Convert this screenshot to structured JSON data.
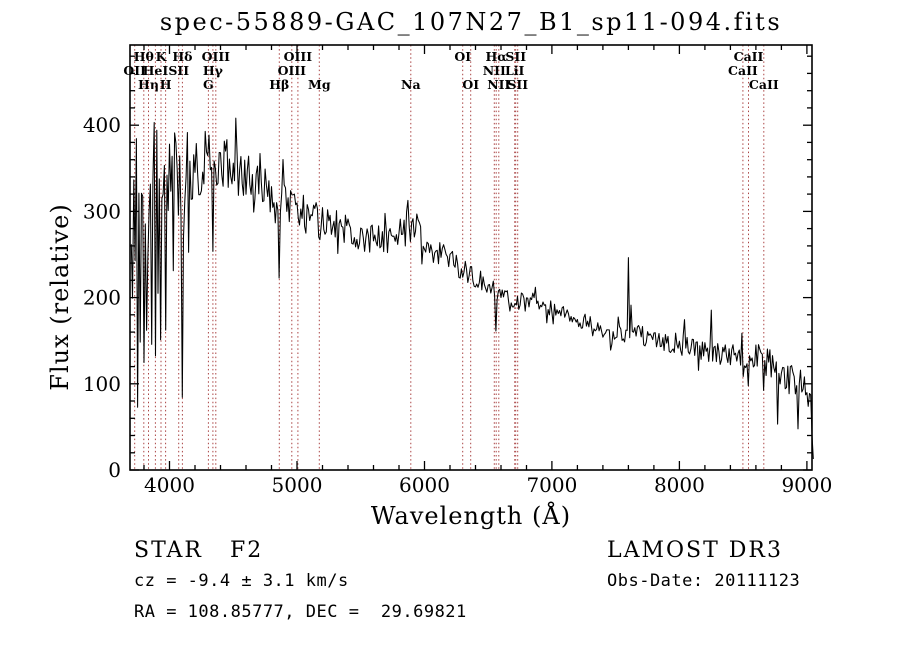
{
  "title": "spec-55889-GAC_107N27_B1_sp11-094.fits",
  "footer": {
    "class_label": "STAR   F2",
    "survey": "LAMOST DR3",
    "cz": "cz = -9.4 ± 3.1 km/s",
    "obs_date": "Obs-Date: 20111123",
    "ra_dec": "RA = 108.85777, DEC =  29.69821"
  },
  "chart_data": {
    "type": "line",
    "title": "spec-55889-GAC_107N27_B1_sp11-094.fits",
    "xlabel": "Wavelength (Å)",
    "ylabel": "Flux (relative)",
    "xlim": [
      3690,
      9040
    ],
    "ylim": [
      0,
      493
    ],
    "x_ticks": [
      4000,
      5000,
      6000,
      7000,
      8000,
      9000
    ],
    "x_minor_step": 200,
    "y_ticks": [
      0,
      100,
      200,
      300,
      400
    ],
    "y_minor_step": 20,
    "grid": false,
    "line_color": "#000000",
    "spectral_line_color": "#aa4444",
    "spectral_line_rows": [
      [
        {
          "label": "Hθ",
          "wavelength": 3798
        },
        {
          "label": "K",
          "wavelength": 3933
        },
        {
          "label": "Hδ",
          "wavelength": 4101
        },
        {
          "label": "OIII",
          "wavelength": 4363
        },
        {
          "label": "OIII",
          "wavelength": 5007
        },
        {
          "label": "OI",
          "wavelength": 6300
        },
        {
          "label": "Hα",
          "wavelength": 6563
        },
        {
          "label": "SII",
          "wavelength": 6716
        },
        {
          "label": "CaII",
          "wavelength": 8542
        }
      ],
      [
        {
          "label": "OII",
          "wavelength": 3727
        },
        {
          "label": "HeI",
          "wavelength": 3889
        },
        {
          "label": "SII",
          "wavelength": 4072
        },
        {
          "label": "Hγ",
          "wavelength": 4340
        },
        {
          "label": "OIII",
          "wavelength": 4959
        },
        {
          "label": "NII",
          "wavelength": 6548
        },
        {
          "label": "LiI",
          "wavelength": 6708
        },
        {
          "label": "CaII",
          "wavelength": 8498
        }
      ],
      [
        {
          "label": "Hη",
          "wavelength": 3835
        },
        {
          "label": "H",
          "wavelength": 3969
        },
        {
          "label": "G",
          "wavelength": 4305
        },
        {
          "label": "Hβ",
          "wavelength": 4861
        },
        {
          "label": "Mg",
          "wavelength": 5175
        },
        {
          "label": "Na",
          "wavelength": 5893
        },
        {
          "label": "OI",
          "wavelength": 6363
        },
        {
          "label": "NII",
          "wavelength": 6583
        },
        {
          "label": "SII",
          "wavelength": 6731
        },
        {
          "label": "CaII",
          "wavelength": 8662
        }
      ]
    ],
    "noise_seed": 20111123,
    "sample_step": 10,
    "continuum_anchors": [
      [
        3700,
        310
      ],
      [
        3760,
        332
      ],
      [
        3820,
        342
      ],
      [
        3900,
        348
      ],
      [
        4000,
        350
      ],
      [
        4150,
        350
      ],
      [
        4300,
        358
      ],
      [
        4400,
        357
      ],
      [
        4500,
        352
      ],
      [
        4650,
        337
      ],
      [
        4800,
        320
      ],
      [
        4950,
        308
      ],
      [
        5100,
        298
      ],
      [
        5250,
        288
      ],
      [
        5400,
        277
      ],
      [
        5550,
        269
      ],
      [
        5700,
        267
      ],
      [
        5800,
        276
      ],
      [
        5880,
        290
      ],
      [
        5950,
        280
      ],
      [
        6050,
        258
      ],
      [
        6150,
        248
      ],
      [
        6300,
        232
      ],
      [
        6450,
        220
      ],
      [
        6600,
        203
      ],
      [
        6750,
        196
      ],
      [
        6900,
        190
      ],
      [
        7000,
        188
      ],
      [
        7150,
        177
      ],
      [
        7300,
        166
      ],
      [
        7450,
        159
      ],
      [
        7550,
        156
      ],
      [
        7650,
        160
      ],
      [
        7750,
        153
      ],
      [
        7900,
        149
      ],
      [
        8050,
        145
      ],
      [
        8200,
        140
      ],
      [
        8350,
        135
      ],
      [
        8500,
        129
      ],
      [
        8650,
        129
      ],
      [
        8750,
        126
      ],
      [
        8850,
        108
      ],
      [
        8950,
        97
      ],
      [
        9010,
        90
      ],
      [
        9035,
        60
      ],
      [
        9052,
        10
      ]
    ],
    "noise_amplitude_anchors": [
      [
        3700,
        65
      ],
      [
        3850,
        60
      ],
      [
        3950,
        52
      ],
      [
        4050,
        45
      ],
      [
        4200,
        38
      ],
      [
        4400,
        33
      ],
      [
        4600,
        28
      ],
      [
        4800,
        24
      ],
      [
        5000,
        20
      ],
      [
        5300,
        18
      ],
      [
        5600,
        16
      ],
      [
        5900,
        17
      ],
      [
        6100,
        15
      ],
      [
        6400,
        12
      ],
      [
        6700,
        11
      ],
      [
        7000,
        9
      ],
      [
        7300,
        9
      ],
      [
        7600,
        11
      ],
      [
        7900,
        12
      ],
      [
        8200,
        13
      ],
      [
        8500,
        15
      ],
      [
        8700,
        18
      ],
      [
        8900,
        22
      ],
      [
        9050,
        18
      ]
    ],
    "absorption_features": [
      {
        "wavelength": 3712,
        "depth": 170,
        "width": 4
      },
      {
        "wavelength": 3727,
        "depth": 190,
        "width": 4
      },
      {
        "wavelength": 3750,
        "depth": 210,
        "width": 5
      },
      {
        "wavelength": 3771,
        "depth": 200,
        "width": 5
      },
      {
        "wavelength": 3798,
        "depth": 210,
        "width": 5
      },
      {
        "wavelength": 3820,
        "depth": 160,
        "width": 4
      },
      {
        "wavelength": 3835,
        "depth": 230,
        "width": 5
      },
      {
        "wavelength": 3860,
        "depth": 170,
        "width": 4
      },
      {
        "wavelength": 3889,
        "depth": 220,
        "width": 5
      },
      {
        "wavelength": 3910,
        "depth": 160,
        "width": 4
      },
      {
        "wavelength": 3933,
        "depth": 240,
        "width": 6
      },
      {
        "wavelength": 3969,
        "depth": 220,
        "width": 6
      },
      {
        "wavelength": 4026,
        "depth": 120,
        "width": 5
      },
      {
        "wavelength": 4072,
        "depth": 110,
        "width": 5
      },
      {
        "wavelength": 4101,
        "depth": 230,
        "width": 7
      },
      {
        "wavelength": 4150,
        "depth": 80,
        "width": 5
      },
      {
        "wavelength": 4226,
        "depth": 90,
        "width": 5
      },
      {
        "wavelength": 4340,
        "depth": 130,
        "width": 7
      },
      {
        "wavelength": 4383,
        "depth": 70,
        "width": 5
      },
      {
        "wavelength": 4861,
        "depth": 95,
        "width": 7
      },
      {
        "wavelength": 5175,
        "depth": 28,
        "width": 9
      },
      {
        "wavelength": 5893,
        "depth": 32,
        "width": 7
      },
      {
        "wavelength": 6563,
        "depth": 62,
        "width": 6
      },
      {
        "wavelength": 8498,
        "depth": 25,
        "width": 5
      },
      {
        "wavelength": 8542,
        "depth": 30,
        "width": 5
      },
      {
        "wavelength": 8662,
        "depth": 32,
        "width": 5
      },
      {
        "wavelength": 8770,
        "depth": 68,
        "width": 5
      },
      {
        "wavelength": 8930,
        "depth": 55,
        "width": 5
      }
    ],
    "emission_spikes": [
      {
        "wavelength": 4523,
        "height": 65,
        "width": 4
      },
      {
        "wavelength": 6870,
        "height": 18,
        "width": 4
      },
      {
        "wavelength": 7600,
        "height": 88,
        "width": 5
      },
      {
        "wavelength": 7622,
        "height": 30,
        "width": 4
      },
      {
        "wavelength": 8040,
        "height": 28,
        "width": 4
      },
      {
        "wavelength": 8250,
        "height": 48,
        "width": 4
      }
    ]
  }
}
